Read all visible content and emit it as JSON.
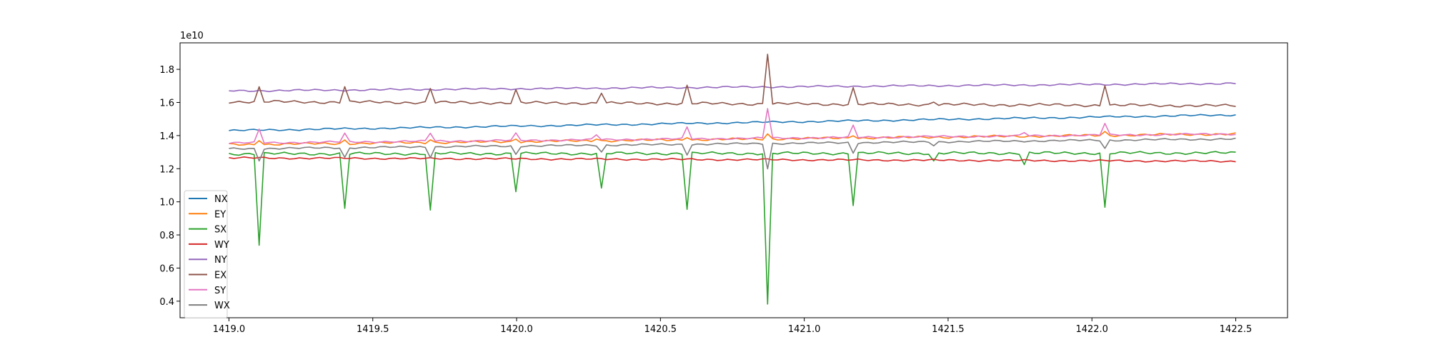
{
  "chart_data": {
    "type": "line",
    "title": "",
    "xlabel": "",
    "ylabel": "",
    "y_offset_label": "1e10",
    "xlim": [
      1418.83,
      1422.68
    ],
    "ylim": [
      0.3,
      1.96
    ],
    "x_start": 1419.0,
    "x_end": 1422.5,
    "x_ticks": [
      1419.0,
      1419.5,
      1420.0,
      1420.5,
      1421.0,
      1421.5,
      1422.0,
      1422.5
    ],
    "x_tick_labels": [
      "1419.0",
      "1419.5",
      "1420.0",
      "1420.5",
      "1421.0",
      "1421.5",
      "1422.0",
      "1422.5"
    ],
    "y_ticks": [
      0.4,
      0.6,
      0.8,
      1.0,
      1.2,
      1.4,
      1.6,
      1.8
    ],
    "y_tick_labels": [
      "0.4",
      "0.6",
      "0.8",
      "1.0",
      "1.2",
      "1.4",
      "1.6",
      "1.8"
    ],
    "grid": false,
    "legend_position": "lower-left",
    "series": [
      {
        "name": "NX",
        "color": "#1f77b4",
        "start": 1.43,
        "end": 1.525,
        "events": [],
        "ripple": 0.004
      },
      {
        "name": "EY",
        "color": "#ff7f0e",
        "start": 1.345,
        "end": 1.41,
        "events": [
          [
            1419.11,
            0.03
          ],
          [
            1419.41,
            0.02
          ],
          [
            1419.7,
            0.02
          ],
          [
            1420.0,
            0.02
          ],
          [
            1420.28,
            0.015
          ],
          [
            1420.59,
            0.02
          ],
          [
            1420.87,
            0.03
          ],
          [
            1421.17,
            0.02
          ],
          [
            1422.05,
            0.02
          ]
        ],
        "ripple": 0.005
      },
      {
        "name": "SX",
        "color": "#2ca02c",
        "start": 1.29,
        "end": 1.295,
        "events": [
          [
            1419.11,
            -0.55
          ],
          [
            1419.41,
            -0.33
          ],
          [
            1419.7,
            -0.345
          ],
          [
            1420.0,
            -0.225
          ],
          [
            1420.29,
            -0.215
          ],
          [
            1420.59,
            -0.335
          ],
          [
            1420.87,
            -0.915
          ],
          [
            1421.17,
            -0.31
          ],
          [
            1421.45,
            -0.05
          ],
          [
            1421.76,
            -0.07
          ],
          [
            1422.05,
            -0.33
          ]
        ],
        "ripple": 0.006
      },
      {
        "name": "WY",
        "color": "#d62728",
        "start": 1.265,
        "end": 1.245,
        "events": [],
        "ripple": 0.004
      },
      {
        "name": "NY",
        "color": "#9467bd",
        "start": 1.67,
        "end": 1.715,
        "events": [],
        "ripple": 0.004
      },
      {
        "name": "EX",
        "color": "#8c564b",
        "start": 1.605,
        "end": 1.58,
        "events": [
          [
            1419.11,
            0.085
          ],
          [
            1419.41,
            0.095
          ],
          [
            1419.7,
            0.085
          ],
          [
            1420.0,
            0.075
          ],
          [
            1420.29,
            0.065
          ],
          [
            1420.59,
            0.105
          ],
          [
            1420.87,
            0.305
          ],
          [
            1421.17,
            0.095
          ],
          [
            1421.45,
            0.02
          ],
          [
            1422.05,
            0.125
          ]
        ],
        "ripple": 0.006
      },
      {
        "name": "SY",
        "color": "#e377c2",
        "start": 1.355,
        "end": 1.41,
        "events": [
          [
            1419.11,
            0.08
          ],
          [
            1419.41,
            0.05
          ],
          [
            1419.7,
            0.05
          ],
          [
            1420.0,
            0.04
          ],
          [
            1420.28,
            0.03
          ],
          [
            1420.59,
            0.07
          ],
          [
            1420.87,
            0.18
          ],
          [
            1421.17,
            0.07
          ],
          [
            1421.76,
            0.02
          ],
          [
            1422.05,
            0.07
          ]
        ],
        "ripple": 0.004
      },
      {
        "name": "WX",
        "color": "#7f7f7f",
        "start": 1.32,
        "end": 1.38,
        "events": [
          [
            1419.11,
            -0.07
          ],
          [
            1419.41,
            -0.06
          ],
          [
            1419.7,
            -0.06
          ],
          [
            1420.0,
            -0.05
          ],
          [
            1420.29,
            -0.04
          ],
          [
            1420.59,
            -0.06
          ],
          [
            1420.87,
            -0.15
          ],
          [
            1421.17,
            -0.06
          ],
          [
            1421.45,
            -0.02
          ],
          [
            1422.05,
            -0.05
          ]
        ],
        "ripple": 0.004
      }
    ]
  }
}
